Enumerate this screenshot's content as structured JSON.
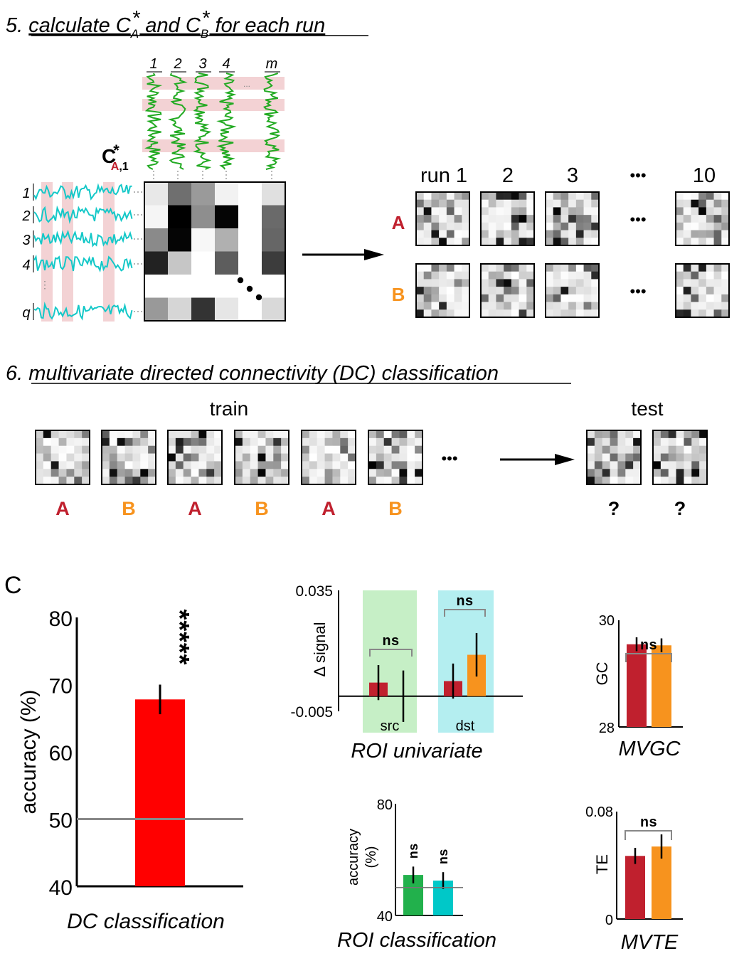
{
  "colors": {
    "A": "#c0202e",
    "B": "#f7931e",
    "red": "#ff0000",
    "green": "#22b14c",
    "cyan": "#00c8c8",
    "src_bg": "#c6efc6",
    "dst_bg": "#b4eef0",
    "pink": "#f3d2d4",
    "trace_green": "#22aa22",
    "trace_cyan": "#14c8c8"
  },
  "step5": {
    "prefix": "5. ",
    "title_a": "calculate C",
    "sub_a": "A",
    "sup_star": "*",
    "mid": " and C",
    "sub_b": "B",
    "tail": " for each run",
    "col_labels": [
      "1",
      "2",
      "3",
      "4",
      "m"
    ],
    "col_dots": "...",
    "row_labels": [
      "1",
      "2",
      "3",
      "4",
      "q"
    ],
    "row_dots": "⋮",
    "c_label": "C",
    "c_sub_a": "A",
    "c_sub_rest": ",1",
    "runs": [
      "run 1",
      "2",
      "3",
      "10"
    ],
    "run_ellipsis": "•••",
    "rows": [
      "A",
      "B"
    ]
  },
  "step6": {
    "prefix": "6. ",
    "title": "multivariate directed connectivity (DC) classification",
    "train_label": "train",
    "test_label": "test",
    "train_classes": [
      "A",
      "B",
      "A",
      "B",
      "A",
      "B"
    ],
    "test_classes": [
      "?",
      "?"
    ],
    "ellipsis": "•••"
  },
  "panel_c": {
    "label": "C"
  },
  "chart_data": [
    {
      "type": "bar",
      "id": "dc",
      "title": "DC classification",
      "ylabel": "accuracy (%)",
      "ylim": [
        40,
        80
      ],
      "yticks": [
        "40",
        "50",
        "60",
        "70",
        "80"
      ],
      "chance": 50,
      "categories": [
        ""
      ],
      "values": [
        67.8
      ],
      "errors": [
        2.2
      ],
      "significance": "*****"
    },
    {
      "type": "bar",
      "id": "univariate",
      "title": "ROI univariate",
      "ylabel": "Δ signal",
      "ylim": [
        -0.005,
        0.035
      ],
      "yticks": [
        "-0.005",
        "0.035"
      ],
      "groups": [
        "src",
        "dst"
      ],
      "series": [
        {
          "values": [
            0.0045,
            0.005
          ],
          "errors": [
            0.0058,
            0.0058
          ]
        },
        {
          "values": [
            0.0,
            0.0137
          ],
          "errors": [
            0.0085,
            0.0072
          ]
        }
      ],
      "significance": [
        "ns",
        "ns"
      ]
    },
    {
      "type": "bar",
      "id": "mvgc",
      "title": "MVGC",
      "ylabel": "GC",
      "ylim": [
        28,
        30
      ],
      "yticks": [
        "28",
        "30"
      ],
      "series": [
        {
          "values": [
            29.55
          ],
          "errors": [
            0.13
          ]
        },
        {
          "values": [
            29.53
          ],
          "errors": [
            0.13
          ]
        }
      ],
      "significance": "ns"
    },
    {
      "type": "bar",
      "id": "roi_class",
      "title": "ROI classification",
      "ylabel": "accuracy (%)",
      "ylim": [
        40,
        80
      ],
      "yticks": [
        "40",
        "80"
      ],
      "chance": 50,
      "values": [
        54.5,
        52.5
      ],
      "errors": [
        3.0,
        3.0
      ],
      "significance": [
        "ns",
        "ns"
      ]
    },
    {
      "type": "bar",
      "id": "mvte",
      "title": "MVTE",
      "ylabel": "TE",
      "ylim": [
        0,
        0.08
      ],
      "yticks": [
        "0",
        "0.08"
      ],
      "series": [
        {
          "values": [
            0.047
          ],
          "errors": [
            0.006
          ]
        },
        {
          "values": [
            0.054
          ],
          "errors": [
            0.009
          ]
        }
      ],
      "significance": "ns"
    }
  ]
}
